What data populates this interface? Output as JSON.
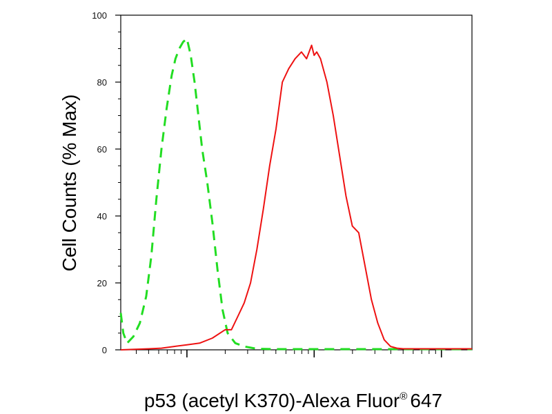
{
  "chart_data": {
    "type": "line",
    "xlabel": "p53 (acetyl K370)-Alexa Fluor",
    "xlabel_superscript": "®",
    "xlabel_suffix": "647",
    "ylabel": "Cell Counts (% Max)",
    "x_scale": "log",
    "ylim": [
      0,
      100
    ],
    "y_ticks": [
      "0",
      "20",
      "40",
      "60",
      "80",
      "100"
    ],
    "y_tick_values": [
      0,
      20,
      40,
      60,
      80,
      100
    ],
    "x_major_decades": [
      1,
      2,
      3
    ],
    "xlim_decades": [
      0.48,
      3.24
    ],
    "grid": false,
    "legend": "none",
    "series": [
      {
        "color": "#22dd22",
        "style": "dashed",
        "x_decade": [
          0.48,
          0.5,
          0.53,
          0.58,
          0.63,
          0.68,
          0.72,
          0.76,
          0.8,
          0.84,
          0.88,
          0.91,
          0.94,
          0.97,
          1.0,
          1.03,
          1.06,
          1.09,
          1.12,
          1.16,
          1.2,
          1.24,
          1.28,
          1.32,
          1.38,
          1.45,
          1.55,
          1.7,
          2.0,
          2.5,
          3.0,
          3.24
        ],
        "y": [
          11,
          5,
          2,
          4,
          8,
          16,
          28,
          45,
          60,
          72,
          82,
          87,
          90,
          92,
          93,
          88,
          80,
          70,
          60,
          50,
          38,
          24,
          12,
          5,
          2,
          1,
          0.3,
          0.2,
          0.2,
          0.2,
          0.2,
          0.2
        ]
      },
      {
        "color": "#ee1111",
        "style": "solid",
        "x_decade": [
          0.48,
          0.7,
          0.8,
          0.9,
          1.0,
          1.1,
          1.2,
          1.3,
          1.35,
          1.4,
          1.45,
          1.5,
          1.55,
          1.6,
          1.65,
          1.7,
          1.75,
          1.8,
          1.85,
          1.9,
          1.94,
          1.98,
          2.0,
          2.02,
          2.05,
          2.1,
          2.15,
          2.2,
          2.25,
          2.3,
          2.35,
          2.4,
          2.45,
          2.5,
          2.55,
          2.6,
          2.65,
          2.7,
          2.8,
          3.0,
          3.24
        ],
        "y": [
          0,
          0.3,
          0.5,
          1,
          1.5,
          2,
          3.5,
          6,
          6,
          10,
          14,
          20,
          30,
          42,
          55,
          66,
          80,
          84,
          87,
          89,
          87,
          91,
          88,
          89,
          87,
          80,
          70,
          58,
          46,
          37,
          35,
          25,
          15,
          8,
          3,
          1,
          0.5,
          0.3,
          0.3,
          0.3,
          0.3
        ]
      }
    ]
  }
}
